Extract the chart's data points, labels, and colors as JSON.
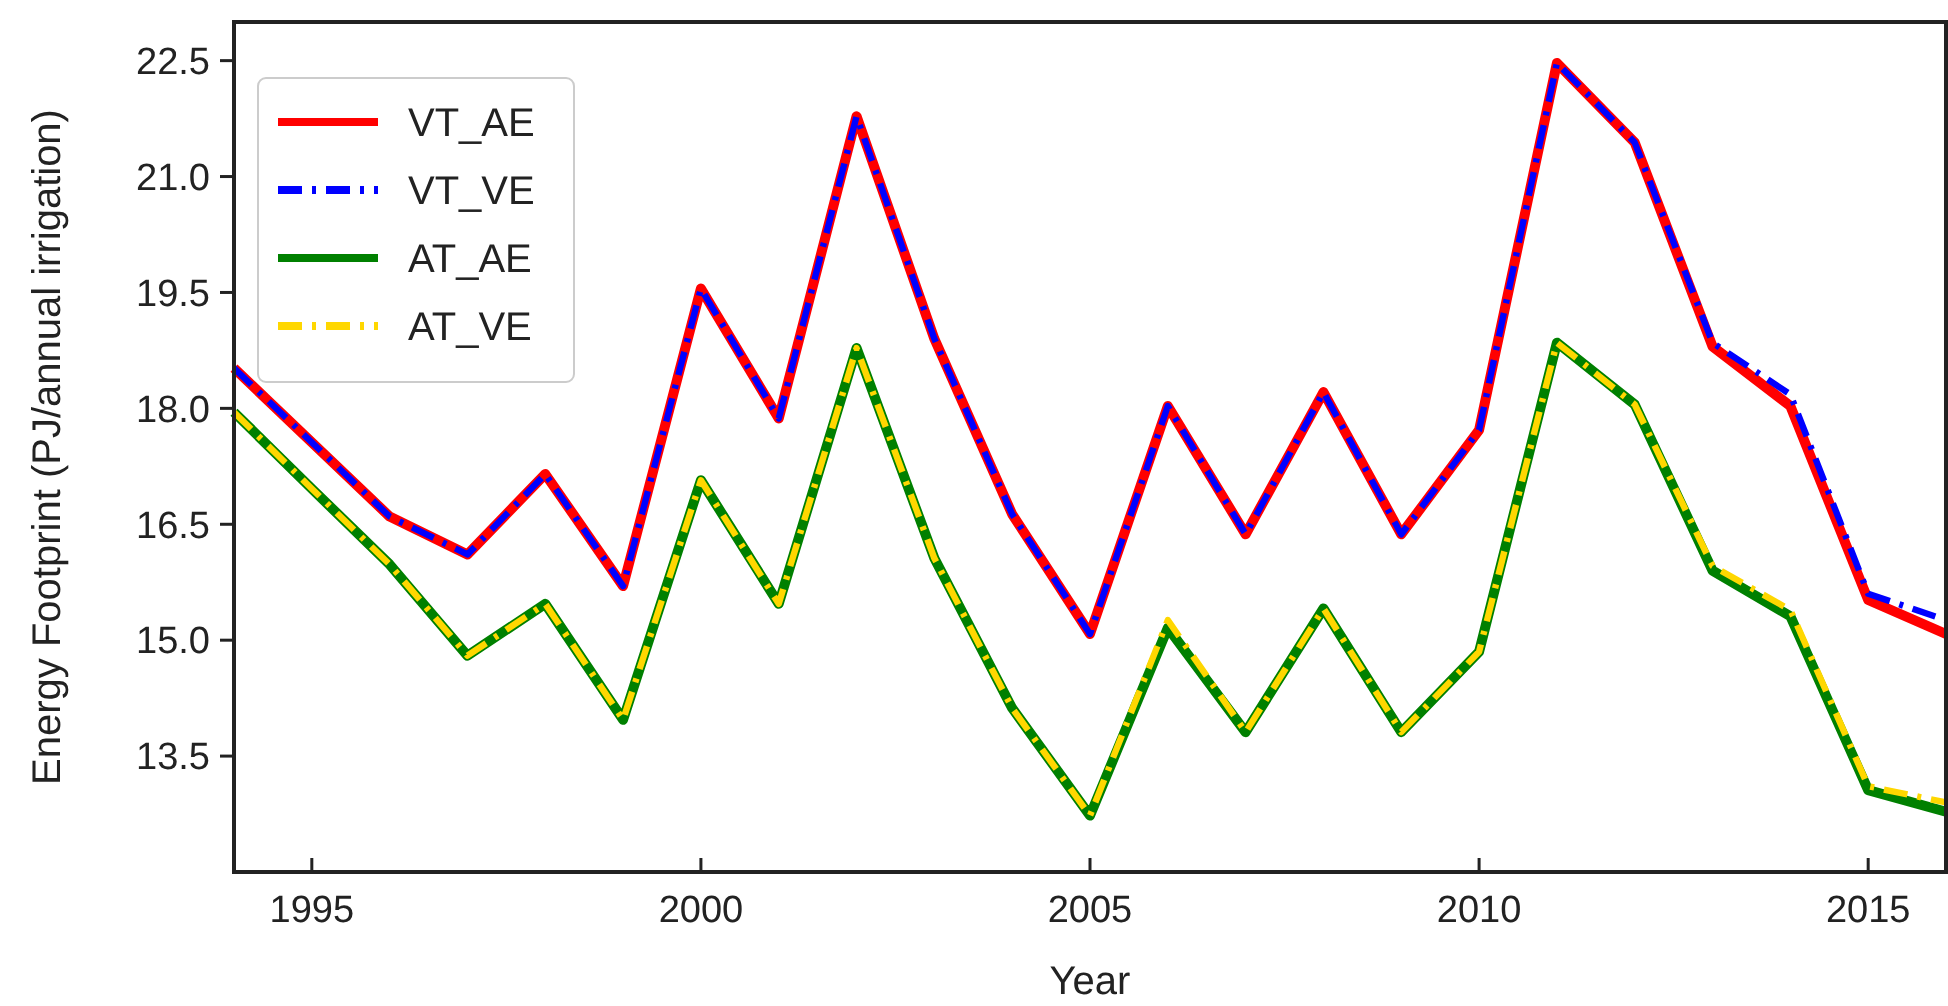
{
  "chart_data": {
    "type": "line",
    "xlabel": "Year",
    "ylabel": "Energy Footprint (PJ/annual irrigation)",
    "x": [
      1994,
      1995,
      1996,
      1997,
      1998,
      1999,
      2000,
      2001,
      2002,
      2003,
      2004,
      2005,
      2006,
      2007,
      2008,
      2009,
      2010,
      2011,
      2012,
      2013,
      2014,
      2015,
      2016
    ],
    "series": [
      {
        "name": "VT_AE",
        "color": "#ff0000",
        "line_style": "solid",
        "values": [
          18.52,
          17.56,
          16.6,
          16.11,
          17.15,
          15.7,
          19.55,
          17.87,
          21.78,
          18.9,
          16.63,
          15.08,
          18.03,
          16.37,
          18.21,
          16.37,
          17.72,
          22.47,
          21.44,
          18.8,
          18.03,
          15.52,
          15.08
        ]
      },
      {
        "name": "VT_VE",
        "color": "#0000ff",
        "line_style": "dashed",
        "values": [
          18.52,
          17.56,
          16.6,
          16.11,
          17.15,
          15.7,
          19.55,
          17.87,
          21.78,
          18.9,
          16.63,
          15.08,
          18.03,
          16.37,
          18.21,
          16.37,
          17.72,
          22.47,
          21.44,
          18.85,
          18.18,
          15.6,
          15.26
        ]
      },
      {
        "name": "AT_AE",
        "color": "#008000",
        "line_style": "solid",
        "values": [
          17.95,
          16.96,
          15.98,
          14.8,
          15.47,
          13.97,
          17.07,
          15.47,
          18.78,
          16.06,
          14.12,
          12.73,
          15.16,
          13.81,
          15.41,
          13.81,
          14.85,
          18.85,
          18.05,
          15.9,
          15.31,
          13.06,
          12.78
        ]
      },
      {
        "name": "AT_VE",
        "color": "#ffd700",
        "line_style": "dashed",
        "values": [
          17.95,
          16.96,
          15.98,
          14.8,
          15.47,
          13.97,
          17.07,
          15.47,
          18.78,
          16.06,
          14.12,
          12.73,
          15.26,
          13.81,
          15.41,
          13.81,
          14.85,
          18.85,
          18.05,
          15.96,
          15.39,
          13.11,
          12.9
        ]
      }
    ],
    "xlim": [
      1994,
      2016
    ],
    "xticks": [
      1995,
      2000,
      2005,
      2010,
      2015
    ],
    "ylim": [
      12,
      23
    ],
    "yticks": [
      13.5,
      {
        "value": 15,
        "label": "15.0"
      },
      16.5,
      {
        "value": 18,
        "label": "18.0"
      },
      19.5,
      {
        "value": 21,
        "label": "21.0"
      },
      22.5
    ],
    "grid": false,
    "legend": "top left"
  }
}
